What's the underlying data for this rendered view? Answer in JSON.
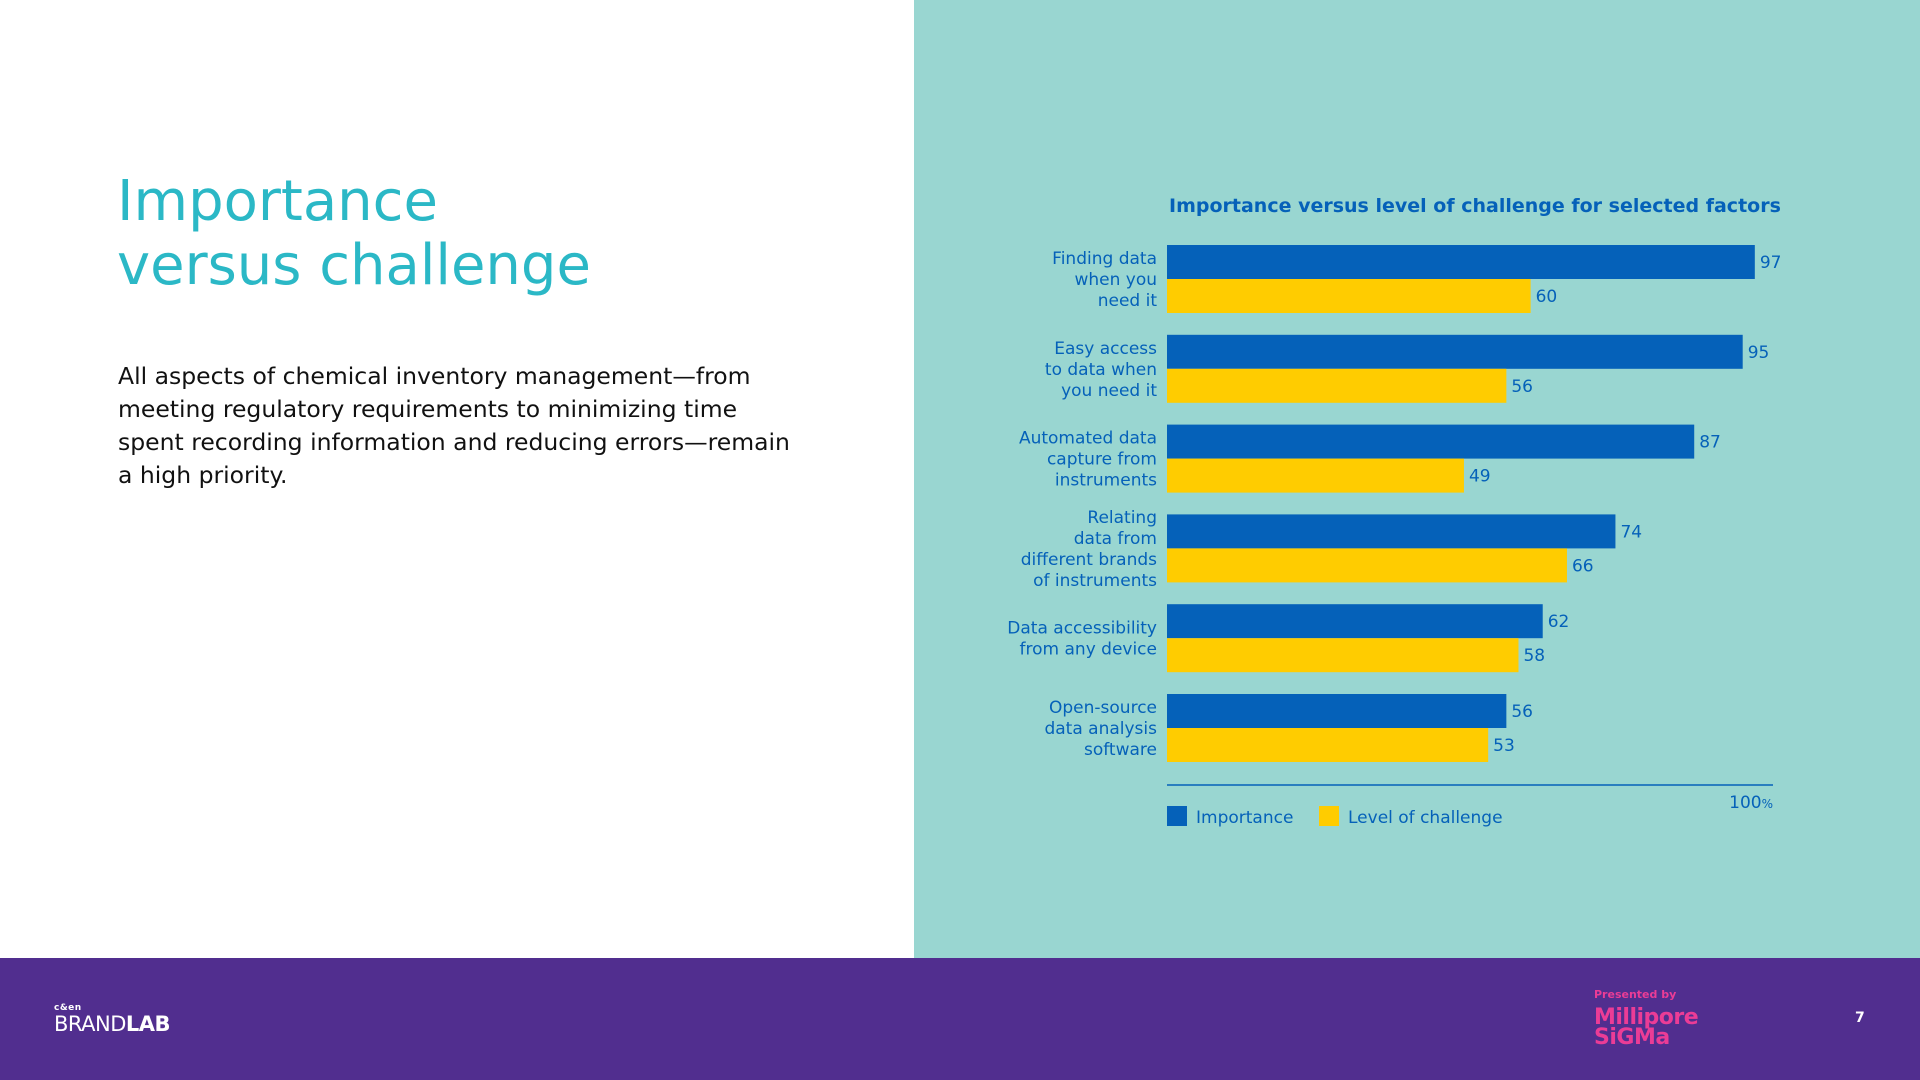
{
  "slide": {
    "title_line1": "Importance",
    "title_line2": "versus challenge",
    "body": "All aspects of chemical inventory management—from meeting regulatory requirements to minimizing time spent recording information and reducing errors—remain a high priority.",
    "page_number": "7"
  },
  "footer": {
    "brand_top": "c&en",
    "brand_word1": "BRAND",
    "brand_word2": "LAB",
    "presented_by": "Presented by",
    "logo_line1": "Millipore",
    "logo_line2": "SiGMa"
  },
  "colors": {
    "title": "#2bb8c6",
    "panel_bg": "#99d6d1",
    "importance": "#0561b9",
    "challenge": "#ffcc00",
    "chart_text": "#0561b9",
    "footer_bg": "#512e8f",
    "logo": "#eb3c96"
  },
  "chart_data": {
    "type": "bar",
    "orientation": "horizontal",
    "title": "Importance versus level of challenge for selected factors",
    "categories": [
      [
        "Finding data",
        "when you",
        "need it"
      ],
      [
        "Easy access",
        "to data when",
        "you need it"
      ],
      [
        "Automated data",
        "capture from",
        "instruments"
      ],
      [
        "Relating",
        "data from",
        "different brands",
        "of instruments"
      ],
      [
        "Data accessibility",
        "from any device"
      ],
      [
        "Open-source",
        "data analysis",
        "software"
      ]
    ],
    "series": [
      {
        "name": "Importance",
        "values": [
          97,
          95,
          87,
          74,
          62,
          56
        ]
      },
      {
        "name": "Level of challenge",
        "values": [
          60,
          56,
          49,
          66,
          58,
          53
        ]
      }
    ],
    "xlim": [
      0,
      100
    ],
    "axis_end_label": "100",
    "axis_unit": "%",
    "legend_position": "bottom-left",
    "grid": false
  }
}
